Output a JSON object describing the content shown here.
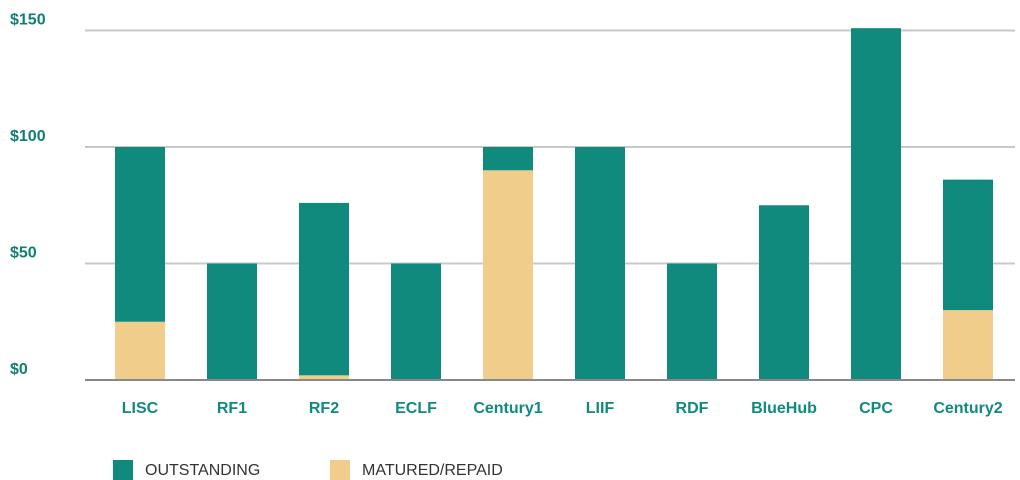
{
  "chart_data": {
    "type": "stacked_bar",
    "categories": [
      "LISC",
      "RF1",
      "RF2",
      "ECLF",
      "Century1",
      "LIIF",
      "RDF",
      "BlueHub",
      "CPC",
      "Century2"
    ],
    "series": [
      {
        "name": "OUTSTANDING",
        "color": "#118a7e",
        "values": [
          75,
          50,
          74,
          50,
          10,
          100,
          50,
          75,
          151,
          56
        ]
      },
      {
        "name": "MATURED/REPAID",
        "color": "#f0cd8a",
        "values": [
          25,
          0,
          2,
          0,
          90,
          0,
          0,
          0,
          0,
          30
        ]
      }
    ],
    "ylim": [
      0,
      155
    ],
    "yticks": [
      {
        "value": 0,
        "label": "$0"
      },
      {
        "value": 50,
        "label": "$50"
      },
      {
        "value": 100,
        "label": "$100"
      },
      {
        "value": 150,
        "label": "$150"
      }
    ],
    "grid": true,
    "legend": "bottom"
  }
}
